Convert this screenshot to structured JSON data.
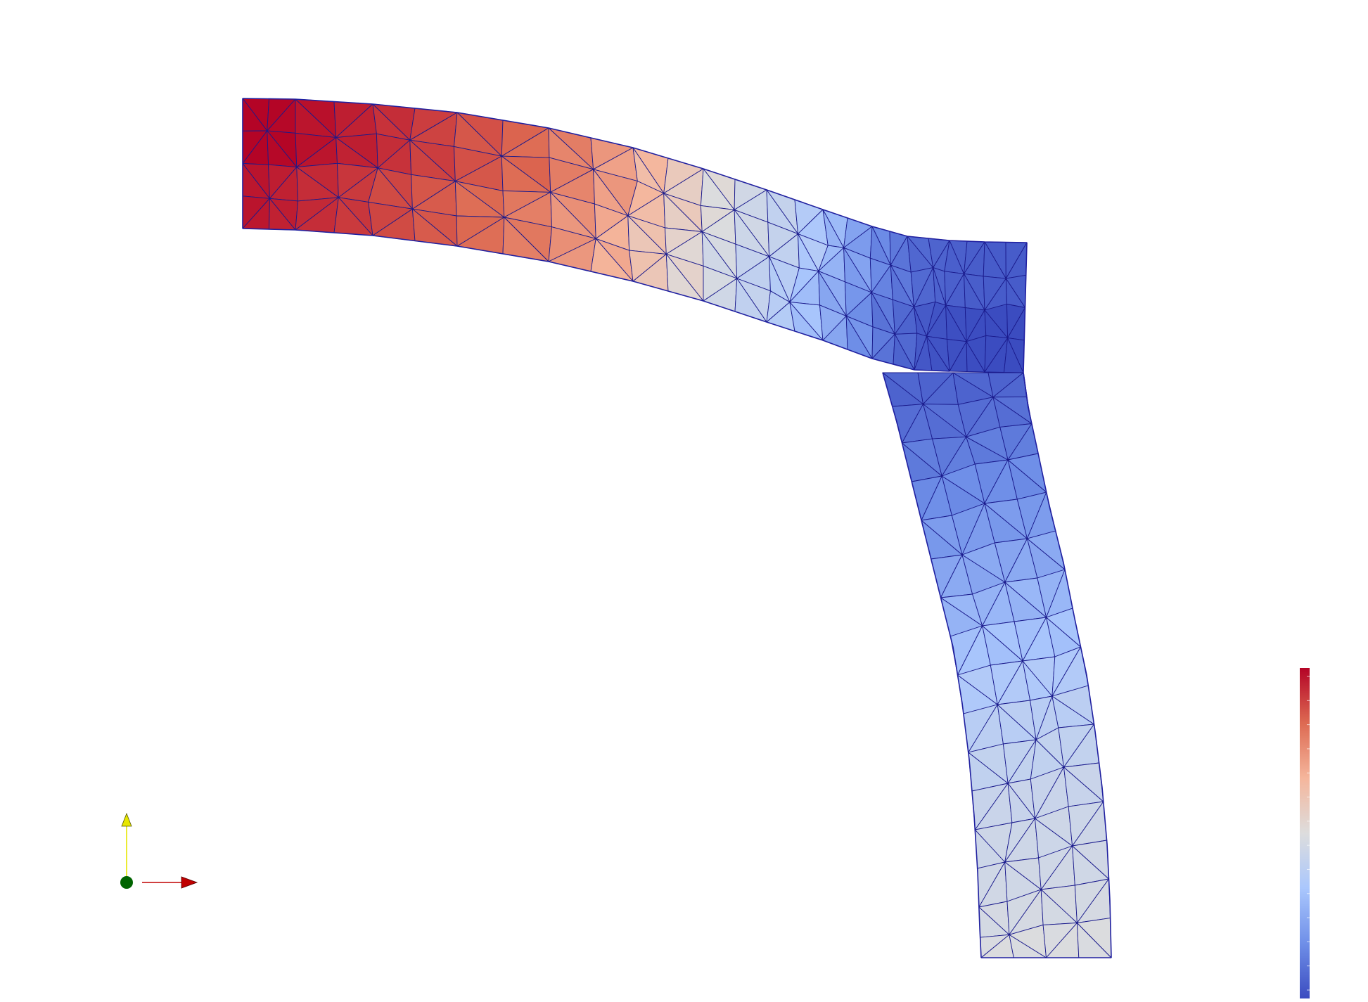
{
  "viewport": {
    "background": "#ffffff",
    "mesh_edge_color": "#1a1a8c",
    "outline_color": "#2020a0"
  },
  "colormap": {
    "name": "Cool to Warm",
    "stops": [
      "#3b4cc0",
      "#6f8fe8",
      "#aac7fd",
      "#dddddd",
      "#f5b69c",
      "#dd6a52",
      "#b40426"
    ],
    "tick_count": 14
  },
  "field": {
    "values": [
      [
        1.0,
        0.97,
        0.93,
        0.88,
        0.82,
        0.72,
        0.58,
        0.45,
        0.38,
        0.25,
        0.12,
        0.05,
        0.03,
        0.02,
        0.02
      ],
      [
        0.05,
        0.1,
        0.18,
        0.26,
        0.34,
        0.4,
        0.44,
        0.46,
        0.5
      ]
    ]
  },
  "axes": {
    "x_color": "#c00000",
    "y_color": "#e6e600",
    "origin_color": "#006400"
  }
}
